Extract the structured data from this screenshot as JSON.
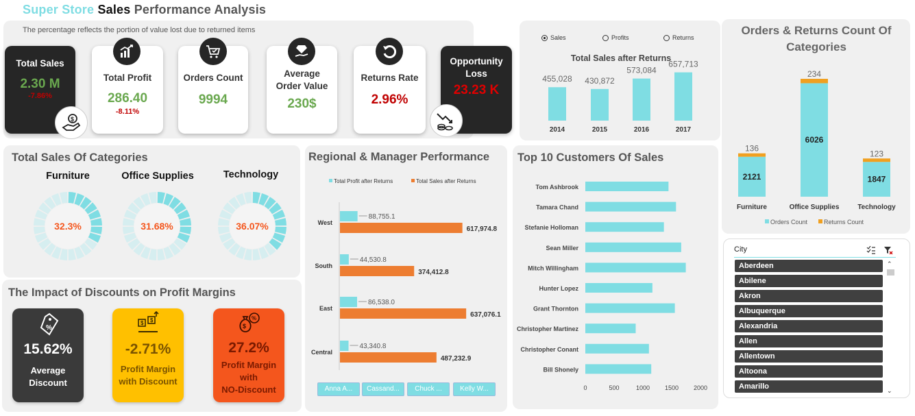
{
  "header": {
    "title_part1": "Super Store",
    "title_part2": "Sales",
    "title_part3": "Performance Analysis",
    "note": "The percentage reflects the portion of value lost due to returned items"
  },
  "kpis": {
    "total_sales": {
      "label": "Total Sales",
      "value": "2.30 M",
      "change": "-7.86%"
    },
    "total_profit": {
      "label": "Total Profit",
      "value": "286.40",
      "change": "-8.11%"
    },
    "orders_count": {
      "label": "Orders Count",
      "value": "9994"
    },
    "avg_order": {
      "label": "Average Order Value",
      "value": "230$"
    },
    "returns_rate": {
      "label": "Returns Rate",
      "value": "2.96%"
    },
    "opportunity": {
      "label": "Opportunity Loss",
      "value": "23.23 K"
    }
  },
  "sales_chart": {
    "radios": [
      "Sales",
      "Profits",
      "Returns"
    ],
    "selected": "Sales"
  },
  "categories_section": {
    "title": "Total Sales Of Categories",
    "items": [
      {
        "name": "Furniture",
        "percent": "32.3%"
      },
      {
        "name": "Office Supplies",
        "percent": "31.68%"
      },
      {
        "name": "Technology",
        "percent": "36.07%"
      }
    ]
  },
  "discount_section": {
    "title": "The Impact of Discounts on Profit Margins",
    "cards": [
      {
        "value": "15.62%",
        "label_line1": "Average",
        "label_line2": "Discount",
        "label_line3": "",
        "color": "#3a3a3a"
      },
      {
        "value": "-2.71%",
        "label_line1": "Profit Margin",
        "label_line2": "with Discount",
        "label_line3": "",
        "color": "#ffc000"
      },
      {
        "value": "27.2%",
        "label_line1": "Profit Margin",
        "label_line2": "with",
        "label_line3": "NO-Discount",
        "color": "#f4561d"
      }
    ]
  },
  "managers": [
    "Anna A...",
    "Cassand...",
    "Chuck ...",
    "Kelly W..."
  ],
  "city_slicer": {
    "title": "City",
    "items": [
      "Aberdeen",
      "Abilene",
      "Akron",
      "Albuquerque",
      "Alexandria",
      "Allen",
      "Allentown",
      "Altoona",
      "Amarillo"
    ]
  },
  "chart_data": [
    {
      "type": "bar",
      "title": "Total Sales after Returns",
      "categories": [
        "2014",
        "2015",
        "2016",
        "2017"
      ],
      "values": [
        455028,
        430872,
        573084,
        657713
      ],
      "value_labels": [
        "455,028",
        "430,872",
        "573,084",
        "657,713"
      ],
      "color": "#7fdde3"
    },
    {
      "type": "bar",
      "title": "Orders & Returns Count Of Categories",
      "categories": [
        "Furniture",
        "Office Supplies",
        "Technology"
      ],
      "series": [
        {
          "name": "Orders Count",
          "values": [
            2121,
            6026,
            1847
          ],
          "color": "#7fdde3"
        },
        {
          "name": "Returns Count",
          "values": [
            136,
            234,
            123
          ],
          "color": "#f0a020"
        }
      ],
      "stacked": true
    },
    {
      "type": "bar",
      "orientation": "horizontal",
      "title": "Regional & Manager Performance",
      "categories": [
        "West",
        "South",
        "East",
        "Central"
      ],
      "series": [
        {
          "name": "Total Profit after Returns",
          "values": [
            88755.1,
            44530.8,
            86538.0,
            43340.8
          ],
          "labels": [
            "88,755.1",
            "44,530.8",
            "86,538.0",
            "43,340.8"
          ],
          "color": "#7fdde3"
        },
        {
          "name": "Total Sales after Returns",
          "values": [
            617974.8,
            374412.8,
            637076.1,
            487232.9
          ],
          "labels": [
            "617,974.8",
            "374,412.8",
            "637,076.1",
            "487,232.9"
          ],
          "color": "#ed7d31"
        }
      ]
    },
    {
      "type": "bar",
      "orientation": "horizontal",
      "title": "Top 10 Customers Of Sales",
      "categories": [
        "Tom Ashbrook",
        "Tamara Chand",
        "Stefanie Holloman",
        "Sean Miller",
        "Mitch Willingham",
        "Hunter Lopez",
        "Grant Thornton",
        "Christopher Martinez",
        "Christopher Conant",
        "Bill Shonely"
      ],
      "values": [
        1445,
        1575,
        1365,
        1665,
        1745,
        1165,
        1555,
        875,
        1105,
        1145
      ],
      "xticks": [
        "0",
        "500",
        "1000",
        "1500",
        "2000"
      ],
      "xlim": [
        0,
        2000
      ],
      "color": "#7fdde3"
    },
    {
      "type": "pie",
      "title": "Total Sales Of Categories",
      "categories": [
        "Furniture",
        "Office Supplies",
        "Technology"
      ],
      "values": [
        32.3,
        31.68,
        36.07
      ]
    }
  ]
}
